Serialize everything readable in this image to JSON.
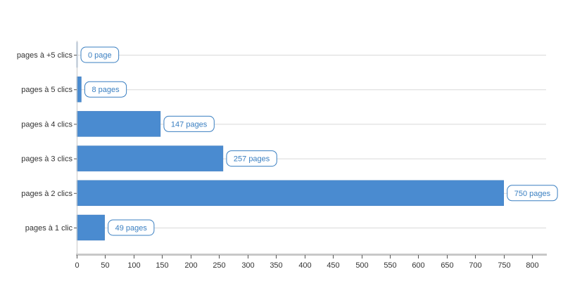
{
  "chart_data": {
    "type": "bar",
    "orientation": "horizontal",
    "categories": [
      "pages à +5 clics",
      "pages à 5 clics",
      "pages à 4 clics",
      "pages à 3 clics",
      "pages à 2 clics",
      "pages à 1 clic"
    ],
    "values": [
      0,
      8,
      147,
      257,
      750,
      49
    ],
    "data_labels": [
      "0 page",
      "8 pages",
      "147 pages",
      "257 pages",
      "750 pages",
      "49 pages"
    ],
    "x_ticks": [
      "0",
      "50",
      "100",
      "150",
      "200",
      "250",
      "300",
      "350",
      "400",
      "450",
      "500",
      "550",
      "600",
      "650",
      "700",
      "750",
      "800"
    ],
    "xlim": [
      0,
      825
    ],
    "title": "",
    "xlabel": "",
    "ylabel": "",
    "grid": "horizontal",
    "legend": "none",
    "colors": {
      "bar": "#4a8bd0",
      "bar_stroke": "#3a78bb",
      "grid": "#d9d9d9",
      "axis": "#c8c8c8",
      "label_text": "#3a7fc1",
      "label_border": "#3a7fc1"
    }
  }
}
